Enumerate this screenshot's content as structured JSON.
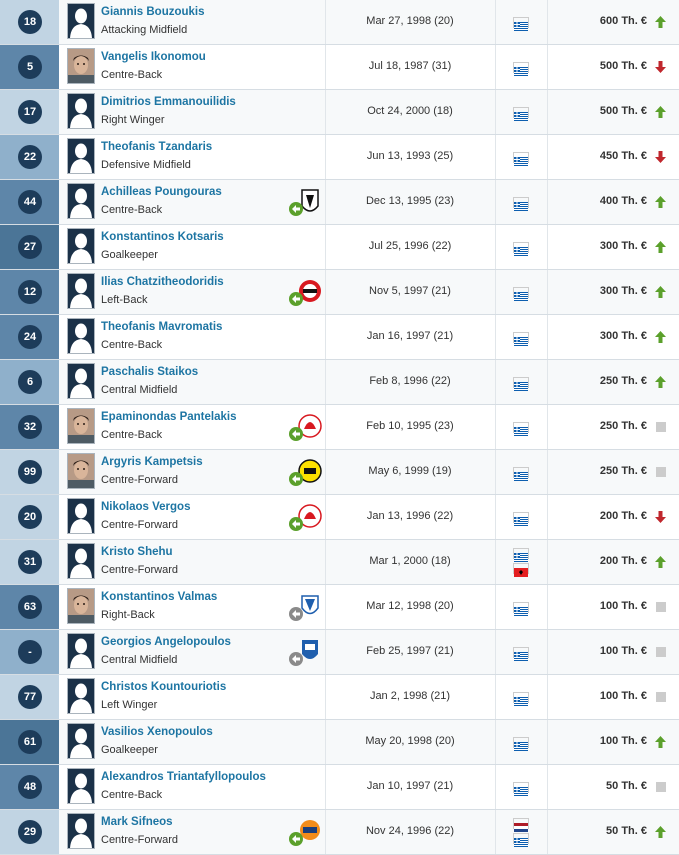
{
  "colors": {
    "up": "#5ba02b",
    "down": "#c0272d",
    "same": "#cccccc",
    "link": "#1d75a3"
  },
  "players": [
    {
      "number": "18",
      "name": "Giannis Bouzoukis",
      "position": "Attacking Midfield",
      "dob": "Mar 27, 1998 (20)",
      "value": "600 Th. €",
      "trend": "up",
      "nationalities": [
        "greece"
      ],
      "loan_club": "",
      "photo": "placeholder-silhouette",
      "pos_group": "att"
    },
    {
      "number": "5",
      "name": "Vangelis Ikonomou",
      "position": "Centre-Back",
      "dob": "Jul 18, 1987 (31)",
      "value": "500 Th. €",
      "trend": "down",
      "nationalities": [
        "greece"
      ],
      "loan_club": "",
      "photo": "player-photo",
      "pos_group": "def"
    },
    {
      "number": "17",
      "name": "Dimitrios Emmanouilidis",
      "position": "Right Winger",
      "dob": "Oct 24, 2000 (18)",
      "value": "500 Th. €",
      "trend": "up",
      "nationalities": [
        "greece"
      ],
      "loan_club": "",
      "photo": "placeholder-silhouette",
      "pos_group": "att"
    },
    {
      "number": "22",
      "name": "Theofanis Tzandaris",
      "position": "Defensive Midfield",
      "dob": "Jun 13, 1993 (25)",
      "value": "450 Th. €",
      "trend": "down",
      "nationalities": [
        "greece"
      ],
      "loan_club": "",
      "photo": "placeholder-silhouette",
      "pos_group": "mid"
    },
    {
      "number": "44",
      "name": "Achilleas Poungouras",
      "position": "Centre-Back",
      "dob": "Dec 13, 1995 (23)",
      "value": "400 Th. €",
      "trend": "up",
      "nationalities": [
        "greece"
      ],
      "loan_club": "paok",
      "photo": "placeholder-silhouette",
      "pos_group": "def"
    },
    {
      "number": "27",
      "name": "Konstantinos Kotsaris",
      "position": "Goalkeeper",
      "dob": "Jul 25, 1996 (22)",
      "value": "300 Th. €",
      "trend": "up",
      "nationalities": [
        "greece"
      ],
      "loan_club": "",
      "photo": "placeholder-silhouette",
      "pos_group": "gk"
    },
    {
      "number": "12",
      "name": "Ilias Chatzitheodoridis",
      "position": "Left-Back",
      "dob": "Nov 5, 1997 (21)",
      "value": "300 Th. €",
      "trend": "up",
      "nationalities": [
        "greece"
      ],
      "loan_club": "brentford",
      "photo": "placeholder-silhouette",
      "pos_group": "def"
    },
    {
      "number": "24",
      "name": "Theofanis Mavromatis",
      "position": "Centre-Back",
      "dob": "Jan 16, 1997 (21)",
      "value": "300 Th. €",
      "trend": "up",
      "nationalities": [
        "greece"
      ],
      "loan_club": "",
      "photo": "placeholder-silhouette",
      "pos_group": "def"
    },
    {
      "number": "6",
      "name": "Paschalis Staikos",
      "position": "Central Midfield",
      "dob": "Feb 8, 1996 (22)",
      "value": "250 Th. €",
      "trend": "up",
      "nationalities": [
        "greece"
      ],
      "loan_club": "",
      "photo": "placeholder-silhouette",
      "pos_group": "mid"
    },
    {
      "number": "32",
      "name": "Epaminondas Pantelakis",
      "position": "Centre-Back",
      "dob": "Feb 10, 1995 (23)",
      "value": "250 Th. €",
      "trend": "same",
      "nationalities": [
        "greece"
      ],
      "loan_club": "olympiacos",
      "photo": "player-photo",
      "pos_group": "def"
    },
    {
      "number": "99",
      "name": "Argyris Kampetsis",
      "position": "Centre-Forward",
      "dob": "May 6, 1999 (19)",
      "value": "250 Th. €",
      "trend": "same",
      "nationalities": [
        "greece"
      ],
      "loan_club": "dortmund",
      "photo": "player-photo",
      "pos_group": "att"
    },
    {
      "number": "20",
      "name": "Nikolaos Vergos",
      "position": "Centre-Forward",
      "dob": "Jan 13, 1996 (22)",
      "value": "200 Th. €",
      "trend": "down",
      "nationalities": [
        "greece"
      ],
      "loan_club": "olympiacos",
      "photo": "placeholder-silhouette",
      "pos_group": "att"
    },
    {
      "number": "31",
      "name": "Kristo Shehu",
      "position": "Centre-Forward",
      "dob": "Mar 1, 2000 (18)",
      "value": "200 Th. €",
      "trend": "up",
      "nationalities": [
        "greece",
        "albania"
      ],
      "loan_club": "",
      "photo": "placeholder-silhouette",
      "pos_group": "att"
    },
    {
      "number": "63",
      "name": "Konstantinos Valmas",
      "position": "Right-Back",
      "dob": "Mar 12, 1998 (20)",
      "value": "100 Th. €",
      "trend": "same",
      "nationalities": [
        "greece"
      ],
      "loan_club": "blue-club",
      "photo": "player-photo",
      "pos_group": "def"
    },
    {
      "number": "-",
      "name": "Georgios Angelopoulos",
      "position": "Central Midfield",
      "dob": "Feb 25, 1997 (21)",
      "value": "100 Th. €",
      "trend": "same",
      "nationalities": [
        "greece"
      ],
      "loan_club": "blue-white-club",
      "photo": "placeholder-silhouette",
      "pos_group": "mid"
    },
    {
      "number": "77",
      "name": "Christos Kountouriotis",
      "position": "Left Winger",
      "dob": "Jan 2, 1998 (21)",
      "value": "100 Th. €",
      "trend": "same",
      "nationalities": [
        "greece"
      ],
      "loan_club": "",
      "photo": "placeholder-silhouette",
      "pos_group": "att"
    },
    {
      "number": "61",
      "name": "Vasilios Xenopoulos",
      "position": "Goalkeeper",
      "dob": "May 20, 1998 (20)",
      "value": "100 Th. €",
      "trend": "up",
      "nationalities": [
        "greece"
      ],
      "loan_club": "",
      "photo": "placeholder-silhouette",
      "pos_group": "gk"
    },
    {
      "number": "48",
      "name": "Alexandros Triantafyllopoulos",
      "position": "Centre-Back",
      "dob": "Jan 10, 1997 (21)",
      "value": "50 Th. €",
      "trend": "same",
      "nationalities": [
        "greece"
      ],
      "loan_club": "",
      "photo": "placeholder-silhouette",
      "pos_group": "def"
    },
    {
      "number": "29",
      "name": "Mark Sifneos",
      "position": "Centre-Forward",
      "dob": "Nov 24, 1996 (22)",
      "value": "50 Th. €",
      "trend": "up",
      "nationalities": [
        "netherlands",
        "greece"
      ],
      "loan_club": "orange-club",
      "photo": "placeholder-silhouette",
      "pos_group": "att"
    }
  ]
}
